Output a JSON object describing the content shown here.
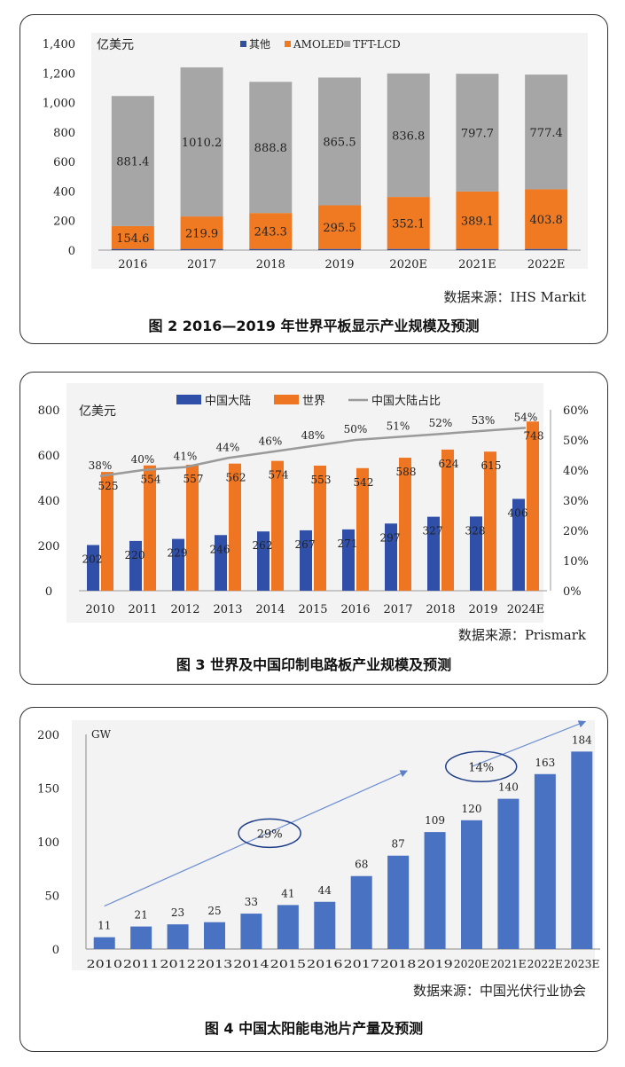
{
  "chart_data": [
    {
      "type": "bar",
      "stacked": true,
      "unit_label": "亿美元",
      "categories": [
        "2016",
        "2017",
        "2018",
        "2019",
        "2020E",
        "2021E",
        "2022E"
      ],
      "series": [
        {
          "name": "其他",
          "color": "#2f4fa0",
          "values": [
            8,
            8,
            8,
            8,
            8,
            8,
            8
          ]
        },
        {
          "name": "AMOLED",
          "color": "#ef7a22",
          "values": [
            154.6,
            219.9,
            243.3,
            295.5,
            352.1,
            389.1,
            403.8
          ]
        },
        {
          "name": "TFT-LCD",
          "color": "#a6a6a6",
          "values": [
            881.4,
            1010.2,
            888.8,
            865.5,
            836.8,
            797.7,
            777.4
          ]
        }
      ],
      "data_labels": {
        "AMOLED": [
          "154.6",
          "219.9",
          "243.3",
          "295.5",
          "352.1",
          "389.1",
          "403.8"
        ],
        "TFT-LCD": [
          "881.4",
          "1010.2",
          "888.8",
          "865.5",
          "836.8",
          "797.7",
          "777.4"
        ]
      },
      "y_ticks": [
        "0",
        "200",
        "400",
        "600",
        "800",
        "1,000",
        "1,200",
        "1,400"
      ],
      "ylim": [
        0,
        1400
      ],
      "grid": false,
      "legend": "top",
      "source": "数据来源：IHS  Markit",
      "caption": "图 2  2016—2019 年世界平板显示产业规模及预测"
    },
    {
      "type": "bar",
      "unit_label": "亿美元",
      "categories": [
        "2010",
        "2011",
        "2012",
        "2013",
        "2014",
        "2015",
        "2016",
        "2017",
        "2018",
        "2019",
        "2024E"
      ],
      "series": [
        {
          "name": "中国大陆",
          "color": "#2f4fa8",
          "values": [
            202,
            220,
            229,
            246,
            262,
            267,
            271,
            297,
            327,
            328,
            406
          ]
        },
        {
          "name": "世界",
          "color": "#ee7522",
          "values": [
            525,
            554,
            557,
            562,
            574,
            553,
            542,
            588,
            624,
            615,
            748
          ]
        },
        {
          "name": "中国大陆占比",
          "color": "#9a9a9a",
          "type": "line",
          "axis": "right",
          "values": [
            38,
            40,
            41,
            44,
            46,
            48,
            50,
            51,
            52,
            53,
            54
          ]
        }
      ],
      "value_labels": [
        "202",
        "220",
        "229",
        "246",
        "262",
        "267",
        "271",
        "297",
        "327",
        "328",
        "406"
      ],
      "world_labels": [
        "525",
        "554",
        "557",
        "562",
        "574",
        "553",
        "542",
        "588",
        "624",
        "615",
        "748"
      ],
      "pct_labels": [
        "38%",
        "40%",
        "41%",
        "44%",
        "46%",
        "48%",
        "50%",
        "51%",
        "52%",
        "53%",
        "54%"
      ],
      "y_ticks": [
        "0",
        "200",
        "400",
        "600",
        "800"
      ],
      "ylim": [
        0,
        800
      ],
      "y2_ticks": [
        "0%",
        "10%",
        "20%",
        "30%",
        "40%",
        "50%",
        "60%"
      ],
      "y2lim": [
        0,
        60
      ],
      "grid": false,
      "legend": "top",
      "source": "数据来源：Prismark",
      "caption": "图 3  世界及中国印制电路板产业规模及预测"
    },
    {
      "type": "bar",
      "unit_label": "GW",
      "categories": [
        "2010",
        "2011",
        "2012",
        "2013",
        "2014",
        "2015",
        "2016",
        "2017",
        "2018",
        "2019",
        "2020E",
        "2021E",
        "2022E",
        "2023E"
      ],
      "series": [
        {
          "name": "",
          "color": "#4a72c2",
          "values": [
            11,
            21,
            23,
            25,
            33,
            41,
            44,
            68,
            87,
            109,
            120,
            140,
            163,
            184
          ]
        }
      ],
      "value_labels": [
        "11",
        "21",
        "23",
        "25",
        "33",
        "41",
        "44",
        "68",
        "87",
        "109",
        "120",
        "140",
        "163",
        "184"
      ],
      "growth_annotations": [
        "29%",
        "14%"
      ],
      "y_ticks": [
        "0",
        "50",
        "100",
        "150",
        "200"
      ],
      "ylim": [
        0,
        200
      ],
      "grid": false,
      "source": "数据来源：中国光伏行业协会",
      "caption": "图 4  中国太阳能电池片产量及预测"
    }
  ]
}
